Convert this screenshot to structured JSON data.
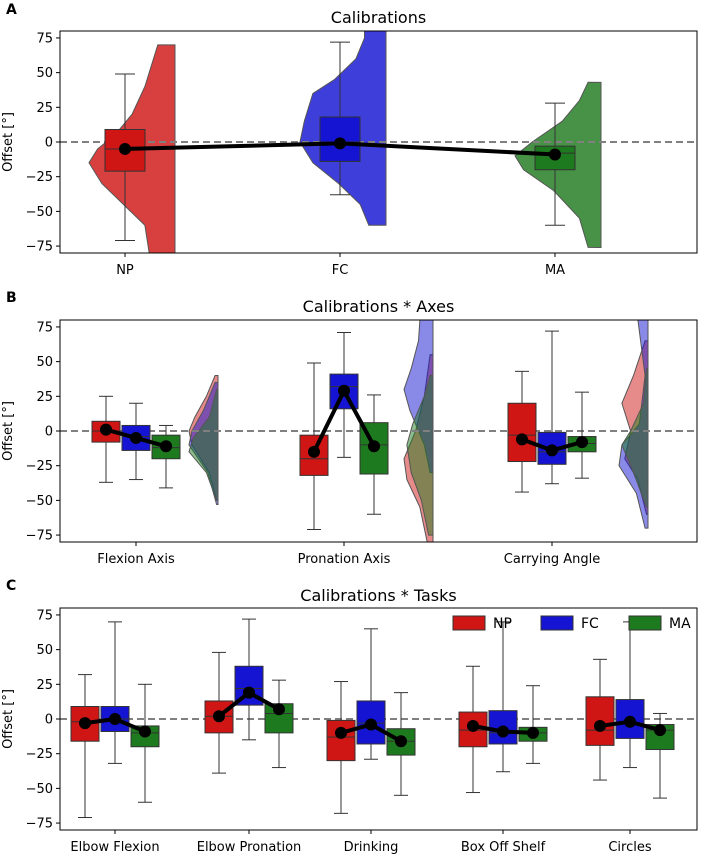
{
  "colors": {
    "NP": "#d01515",
    "FC": "#1414d2",
    "MA": "#1e7a1e",
    "mean": "#000000",
    "ref": "#808080"
  },
  "chart_data": [
    {
      "type": "box",
      "id": "A",
      "panel_label": "A",
      "title": "Calibrations",
      "xlabel": "",
      "ylabel": "Offset [°]",
      "ylim": [
        -80,
        80
      ],
      "yticks": [
        -75,
        -50,
        -25,
        0,
        25,
        50,
        75
      ],
      "y_tick_labels": [
        "−75",
        "−50",
        "−25",
        "0",
        "25",
        "50",
        "75"
      ],
      "reference_line": 0,
      "categories": [
        "NP",
        "FC",
        "MA"
      ],
      "series": [
        {
          "name": "NP",
          "boxes": [
            {
              "min": -71,
              "q1": -21,
              "median": -5,
              "q3": 9,
              "max": 49,
              "mean": -5
            }
          ]
        },
        {
          "name": "FC",
          "boxes": [
            {
              "min": -38,
              "q1": -14,
              "median": 0,
              "q3": 18,
              "max": 72,
              "mean": -1
            }
          ]
        },
        {
          "name": "MA",
          "boxes": [
            {
              "min": -60,
              "q1": -20,
              "median": -8,
              "q3": -3,
              "max": 28,
              "mean": -9
            }
          ]
        }
      ],
      "violins": [
        {
          "series": "NP",
          "min": -80,
          "max": 70,
          "density": [
            [
              -80,
              0.3
            ],
            [
              -60,
              0.35
            ],
            [
              -45,
              0.6
            ],
            [
              -30,
              0.85
            ],
            [
              -15,
              1.0
            ],
            [
              -5,
              0.9
            ],
            [
              5,
              0.7
            ],
            [
              20,
              0.5
            ],
            [
              40,
              0.35
            ],
            [
              60,
              0.25
            ],
            [
              70,
              0.2
            ]
          ]
        },
        {
          "series": "FC",
          "min": -60,
          "max": 80,
          "density": [
            [
              -60,
              0.2
            ],
            [
              -45,
              0.3
            ],
            [
              -30,
              0.55
            ],
            [
              -15,
              0.85
            ],
            [
              0,
              1.0
            ],
            [
              15,
              0.95
            ],
            [
              25,
              0.9
            ],
            [
              35,
              0.85
            ],
            [
              45,
              0.6
            ],
            [
              60,
              0.35
            ],
            [
              75,
              0.25
            ],
            [
              80,
              0.25
            ]
          ]
        },
        {
          "series": "MA",
          "min": -76,
          "max": 43,
          "density": [
            [
              -76,
              0.15
            ],
            [
              -55,
              0.25
            ],
            [
              -35,
              0.55
            ],
            [
              -20,
              0.9
            ],
            [
              -10,
              1.0
            ],
            [
              0,
              0.8
            ],
            [
              15,
              0.45
            ],
            [
              30,
              0.25
            ],
            [
              43,
              0.15
            ]
          ]
        }
      ]
    },
    {
      "type": "box",
      "id": "B",
      "panel_label": "B",
      "title": "Calibrations * Axes",
      "xlabel": "",
      "ylabel": "Offset [°]",
      "ylim": [
        -80,
        80
      ],
      "yticks": [
        -75,
        -50,
        -25,
        0,
        25,
        50,
        75
      ],
      "y_tick_labels": [
        "−75",
        "−50",
        "−25",
        "0",
        "25",
        "50",
        "75"
      ],
      "reference_line": 0,
      "categories": [
        "Flexion Axis",
        "Pronation Axis",
        "Carrying Angle"
      ],
      "series": [
        {
          "name": "NP",
          "boxes": [
            {
              "min": -37,
              "q1": -8,
              "median": 0,
              "q3": 7,
              "max": 25,
              "mean": 1
            },
            {
              "min": -71,
              "q1": -32,
              "median": -20,
              "q3": -3,
              "max": 49,
              "mean": -15
            },
            {
              "min": -44,
              "q1": -22,
              "median": -3,
              "q3": 20,
              "max": 43,
              "mean": -6
            }
          ]
        },
        {
          "name": "FC",
          "boxes": [
            {
              "min": -35,
              "q1": -14,
              "median": -4,
              "q3": 4,
              "max": 20,
              "mean": -5
            },
            {
              "min": -19,
              "q1": 16,
              "median": 32,
              "q3": 41,
              "max": 71,
              "mean": 29
            },
            {
              "min": -38,
              "q1": -24,
              "median": -15,
              "q3": -1,
              "max": 72,
              "mean": -14
            }
          ]
        },
        {
          "name": "MA",
          "boxes": [
            {
              "min": -41,
              "q1": -20,
              "median": -12,
              "q3": -3,
              "max": 4,
              "mean": -11
            },
            {
              "min": -60,
              "q1": -31,
              "median": -10,
              "q3": 6,
              "max": 26,
              "mean": -11
            },
            {
              "min": -34,
              "q1": -15,
              "median": -9,
              "q3": -4,
              "max": 28,
              "mean": -8
            }
          ]
        }
      ],
      "violins": [
        {
          "series": "NP",
          "axis": 0,
          "min": -50,
          "max": 40,
          "density": [
            [
              -50,
              0.05
            ],
            [
              -30,
              0.3
            ],
            [
              -10,
              0.9
            ],
            [
              0,
              1.0
            ],
            [
              10,
              0.8
            ],
            [
              25,
              0.4
            ],
            [
              40,
              0.1
            ]
          ]
        },
        {
          "series": "FC",
          "axis": 0,
          "min": -53,
          "max": 35,
          "density": [
            [
              -53,
              0.05
            ],
            [
              -30,
              0.35
            ],
            [
              -10,
              1.0
            ],
            [
              0,
              0.9
            ],
            [
              15,
              0.5
            ],
            [
              35,
              0.1
            ]
          ]
        },
        {
          "series": "MA",
          "axis": 0,
          "min": -50,
          "max": 30,
          "density": [
            [
              -50,
              0.05
            ],
            [
              -30,
              0.4
            ],
            [
              -15,
              1.0
            ],
            [
              -5,
              0.85
            ],
            [
              10,
              0.3
            ],
            [
              30,
              0.05
            ]
          ]
        },
        {
          "series": "NP",
          "axis": 1,
          "min": -80,
          "max": 55,
          "density": [
            [
              -80,
              0.2
            ],
            [
              -55,
              0.45
            ],
            [
              -35,
              0.9
            ],
            [
              -20,
              1.0
            ],
            [
              0,
              0.6
            ],
            [
              25,
              0.3
            ],
            [
              55,
              0.1
            ]
          ]
        },
        {
          "series": "FC",
          "axis": 1,
          "min": -30,
          "max": 80,
          "density": [
            [
              -30,
              0.1
            ],
            [
              -10,
              0.3
            ],
            [
              15,
              0.8
            ],
            [
              30,
              1.0
            ],
            [
              45,
              0.75
            ],
            [
              65,
              0.5
            ],
            [
              80,
              0.45
            ]
          ]
        },
        {
          "series": "MA",
          "axis": 1,
          "min": -75,
          "max": 40,
          "density": [
            [
              -75,
              0.15
            ],
            [
              -50,
              0.4
            ],
            [
              -30,
              0.75
            ],
            [
              -10,
              0.9
            ],
            [
              5,
              0.7
            ],
            [
              25,
              0.3
            ],
            [
              40,
              0.1
            ]
          ]
        },
        {
          "series": "NP",
          "axis": 2,
          "min": -60,
          "max": 65,
          "density": [
            [
              -60,
              0.05
            ],
            [
              -35,
              0.35
            ],
            [
              -20,
              0.8
            ],
            [
              0,
              0.6
            ],
            [
              20,
              0.9
            ],
            [
              40,
              0.5
            ],
            [
              65,
              0.1
            ]
          ]
        },
        {
          "series": "FC",
          "axis": 2,
          "min": -70,
          "max": 80,
          "density": [
            [
              -70,
              0.1
            ],
            [
              -45,
              0.4
            ],
            [
              -25,
              1.0
            ],
            [
              -10,
              0.9
            ],
            [
              5,
              0.3
            ],
            [
              40,
              0.1
            ],
            [
              80,
              0.35
            ]
          ]
        },
        {
          "series": "MA",
          "axis": 2,
          "min": -55,
          "max": 45,
          "density": [
            [
              -55,
              0.05
            ],
            [
              -30,
              0.5
            ],
            [
              -10,
              0.9
            ],
            [
              0,
              0.6
            ],
            [
              20,
              0.15
            ],
            [
              45,
              0.05
            ]
          ]
        }
      ]
    },
    {
      "type": "box",
      "id": "C",
      "panel_label": "C",
      "title": "Calibrations * Tasks",
      "xlabel": "",
      "ylabel": "Offset [°]",
      "ylim": [
        -80,
        80
      ],
      "yticks": [
        -75,
        -50,
        -25,
        0,
        25,
        50,
        75
      ],
      "y_tick_labels": [
        "−75",
        "−50",
        "−25",
        "0",
        "25",
        "50",
        "75"
      ],
      "reference_line": 0,
      "legend": [
        "NP",
        "FC",
        "MA"
      ],
      "legend_position": "top-right",
      "categories": [
        "Elbow Flexion",
        "Elbow Pronation",
        "Drinking",
        "Box Off Shelf",
        "Circles"
      ],
      "series": [
        {
          "name": "NP",
          "boxes": [
            {
              "min": -71,
              "q1": -16,
              "median": -2,
              "q3": 9,
              "max": 32,
              "mean": -3
            },
            {
              "min": -39,
              "q1": -10,
              "median": 2,
              "q3": 13,
              "max": 48,
              "mean": 2
            },
            {
              "min": -68,
              "q1": -30,
              "median": -13,
              "q3": -1,
              "max": 27,
              "mean": -10
            },
            {
              "min": -53,
              "q1": -20,
              "median": -8,
              "q3": 5,
              "max": 38,
              "mean": -5
            },
            {
              "min": -44,
              "q1": -19,
              "median": -8,
              "q3": 16,
              "max": 43,
              "mean": -5
            }
          ]
        },
        {
          "name": "FC",
          "boxes": [
            {
              "min": -32,
              "q1": -9,
              "median": 0,
              "q3": 9,
              "max": 70,
              "mean": 0
            },
            {
              "min": -15,
              "q1": 10,
              "median": 22,
              "q3": 38,
              "max": 72,
              "mean": 19
            },
            {
              "min": -29,
              "q1": -18,
              "median": -3,
              "q3": 13,
              "max": 65,
              "mean": -4
            },
            {
              "min": -38,
              "q1": -18,
              "median": -10,
              "q3": 6,
              "max": 70,
              "mean": -9
            },
            {
              "min": -35,
              "q1": -14,
              "median": -3,
              "q3": 14,
              "max": 70,
              "mean": -2
            }
          ]
        },
        {
          "name": "MA",
          "boxes": [
            {
              "min": -60,
              "q1": -20,
              "median": -10,
              "q3": -5,
              "max": 25,
              "mean": -9
            },
            {
              "min": -35,
              "q1": -10,
              "median": 4,
              "q3": 11,
              "max": 28,
              "mean": 7
            },
            {
              "min": -55,
              "q1": -26,
              "median": -16,
              "q3": -7,
              "max": 19,
              "mean": -16
            },
            {
              "min": -32,
              "q1": -16,
              "median": -10,
              "q3": -6,
              "max": 24,
              "mean": -10
            },
            {
              "min": -57,
              "q1": -22,
              "median": -8,
              "q3": -4,
              "max": 4,
              "mean": -8
            }
          ]
        }
      ]
    }
  ]
}
